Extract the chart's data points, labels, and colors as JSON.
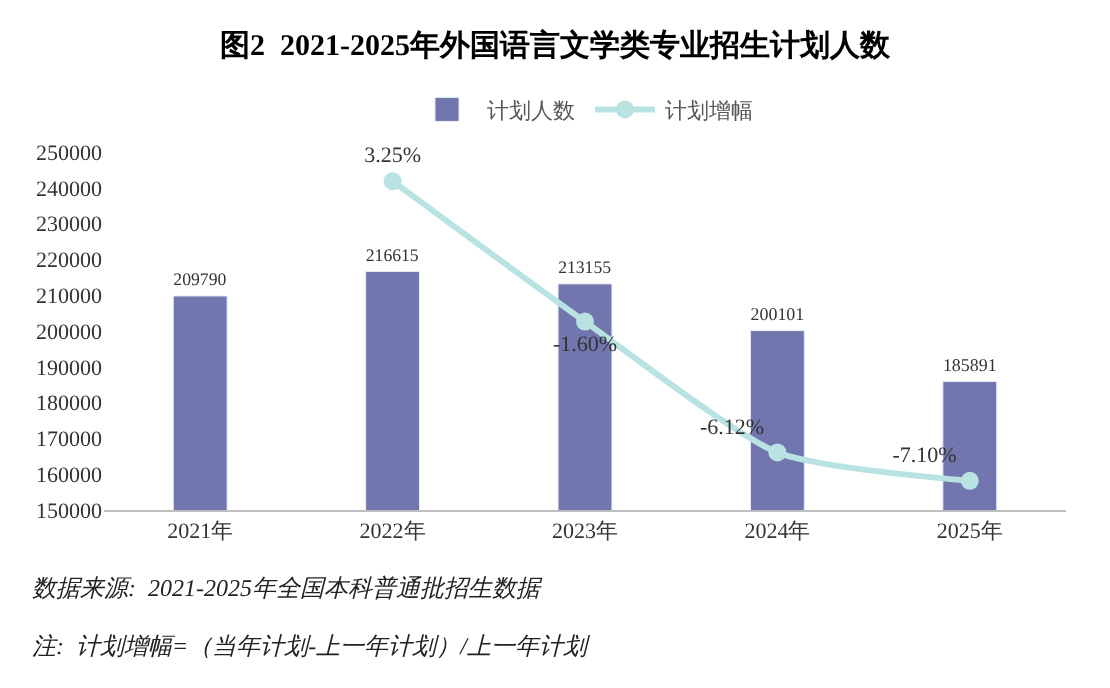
{
  "chart_data": {
    "type": "bar",
    "title": "图2  2021-2025年外国语言文学类专业招生计划人数",
    "categories": [
      "2021年",
      "2022年",
      "2023年",
      "2024年",
      "2025年"
    ],
    "series": [
      {
        "name": "计划人数",
        "color": "#7276ae",
        "values": [
          209790,
          216615,
          213155,
          200101,
          185891
        ],
        "value_labels": [
          "209790",
          "216615",
          "213155",
          "200101",
          "185891"
        ]
      },
      {
        "name": "计划增幅",
        "type": "line",
        "axis": "y2",
        "color": "#b9e3e3",
        "marker": "circle",
        "values": [
          null,
          3.25,
          -1.6,
          -6.12,
          -7.1
        ],
        "value_labels": [
          null,
          "3.25%",
          "-1.60%",
          "-6.12%",
          "-7.10%"
        ]
      }
    ],
    "ylim": [
      150000,
      250000
    ],
    "yticks": [
      150000,
      160000,
      170000,
      180000,
      190000,
      200000,
      210000,
      220000,
      230000,
      240000,
      250000
    ],
    "tick_labels": "xy",
    "legend": "top",
    "annotations": [
      "数据来源:  2021-2025年全国本科普通批招生数据",
      "注:  计划增幅=（当年计划-上一年计划）/上一年计划"
    ]
  }
}
